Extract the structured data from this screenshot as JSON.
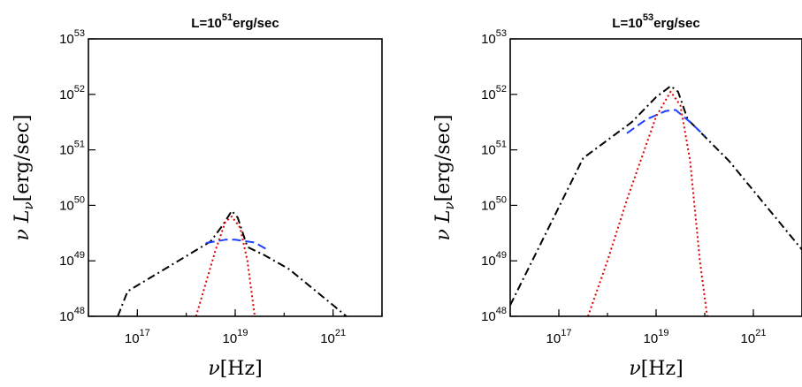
{
  "chart_data": [
    {
      "type": "line",
      "title_pre": "L=10",
      "title_exp": "51",
      "title_post": "erg/sec",
      "xlabel": "ν[Hz]",
      "ylabel": "νL_ν[erg/sec]",
      "xscale": "log",
      "yscale": "log",
      "xlim": [
        1e+16,
        1e+22
      ],
      "ylim": [
        1e+48,
        1e+53
      ],
      "xticks": [
        {
          "base": "10",
          "exp": "17",
          "value": 17
        },
        {
          "base": "10",
          "exp": "19",
          "value": 19
        },
        {
          "base": "10",
          "exp": "21",
          "value": 21
        }
      ],
      "yticks": [
        {
          "base": "10",
          "exp": "48",
          "value": 48
        },
        {
          "base": "10",
          "exp": "49",
          "value": 49
        },
        {
          "base": "10",
          "exp": "50",
          "value": 50
        },
        {
          "base": "10",
          "exp": "51",
          "value": 51
        },
        {
          "base": "10",
          "exp": "52",
          "value": 52
        },
        {
          "base": "10",
          "exp": "53",
          "value": 53
        }
      ],
      "series": [
        {
          "style": "dashdot",
          "color": "#000000",
          "log_x": [
            16.6,
            16.8,
            17.5,
            18.5,
            18.75,
            18.93,
            19.05,
            19.25,
            19.6,
            20.1,
            21.0,
            21.3
          ],
          "log_y": [
            48.0,
            48.45,
            48.82,
            49.35,
            49.65,
            49.9,
            49.78,
            49.25,
            49.1,
            48.85,
            48.2,
            47.98
          ]
        },
        {
          "style": "dashed",
          "color": "#1f3fff",
          "log_x": [
            18.4,
            18.8,
            19.0,
            19.4,
            19.7
          ],
          "log_y": [
            49.32,
            49.38,
            49.38,
            49.33,
            49.18
          ]
        },
        {
          "style": "dotted",
          "color": "#e00000",
          "log_x": [
            18.2,
            18.4,
            18.6,
            18.8,
            18.93,
            19.1,
            19.25,
            19.4
          ],
          "log_y": [
            48.0,
            48.6,
            49.2,
            49.7,
            49.8,
            49.6,
            49.0,
            48.0
          ]
        }
      ]
    },
    {
      "type": "line",
      "title_pre": "L=10",
      "title_exp": "53",
      "title_post": "erg/sec",
      "xlabel": "ν[Hz]",
      "ylabel": "νL_ν[erg/sec]",
      "xscale": "log",
      "yscale": "log",
      "xlim": [
        1e+16,
        1e+22
      ],
      "ylim": [
        1e+48,
        1e+53
      ],
      "xticks": [
        {
          "base": "10",
          "exp": "17",
          "value": 17
        },
        {
          "base": "10",
          "exp": "19",
          "value": 19
        },
        {
          "base": "10",
          "exp": "21",
          "value": 21
        }
      ],
      "yticks": [
        {
          "base": "10",
          "exp": "48",
          "value": 48
        },
        {
          "base": "10",
          "exp": "49",
          "value": 49
        },
        {
          "base": "10",
          "exp": "50",
          "value": 50
        },
        {
          "base": "10",
          "exp": "51",
          "value": 51
        },
        {
          "base": "10",
          "exp": "52",
          "value": 52
        },
        {
          "base": "10",
          "exp": "53",
          "value": 53
        }
      ],
      "series": [
        {
          "style": "dashdot",
          "color": "#000000",
          "log_x": [
            16.0,
            17.5,
            18.5,
            19.0,
            19.3,
            19.45,
            19.65,
            20.5,
            22.0
          ],
          "log_y": [
            48.2,
            50.85,
            51.5,
            51.95,
            52.15,
            52.05,
            51.55,
            50.8,
            49.2
          ]
        },
        {
          "style": "dashed",
          "color": "#1f3fff",
          "log_x": [
            18.4,
            18.8,
            19.2,
            19.4,
            19.7,
            20.0
          ],
          "log_y": [
            51.3,
            51.55,
            51.7,
            51.72,
            51.5,
            51.25
          ]
        },
        {
          "style": "dotted",
          "color": "#e00000",
          "log_x": [
            17.6,
            18.0,
            18.4,
            18.8,
            19.0,
            19.3,
            19.5,
            19.7,
            19.9,
            20.05
          ],
          "log_y": [
            48.0,
            49.0,
            50.1,
            51.1,
            51.6,
            52.05,
            51.8,
            50.8,
            49.0,
            48.0
          ]
        }
      ]
    }
  ]
}
